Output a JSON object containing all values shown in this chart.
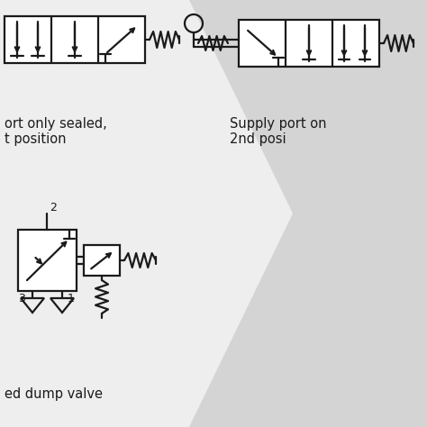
{
  "bg_color": "#eeeeee",
  "chevron_color": "#d4d4d4",
  "line_color": "#1a1a1a",
  "text_color": "#222222",
  "label_top_left": "ort only sealed,\nt position",
  "label_top_right": "Supply port on\n2nd posi",
  "label_bottom": "ed dump valve",
  "figsize": [
    4.74,
    4.74
  ],
  "dpi": 100
}
